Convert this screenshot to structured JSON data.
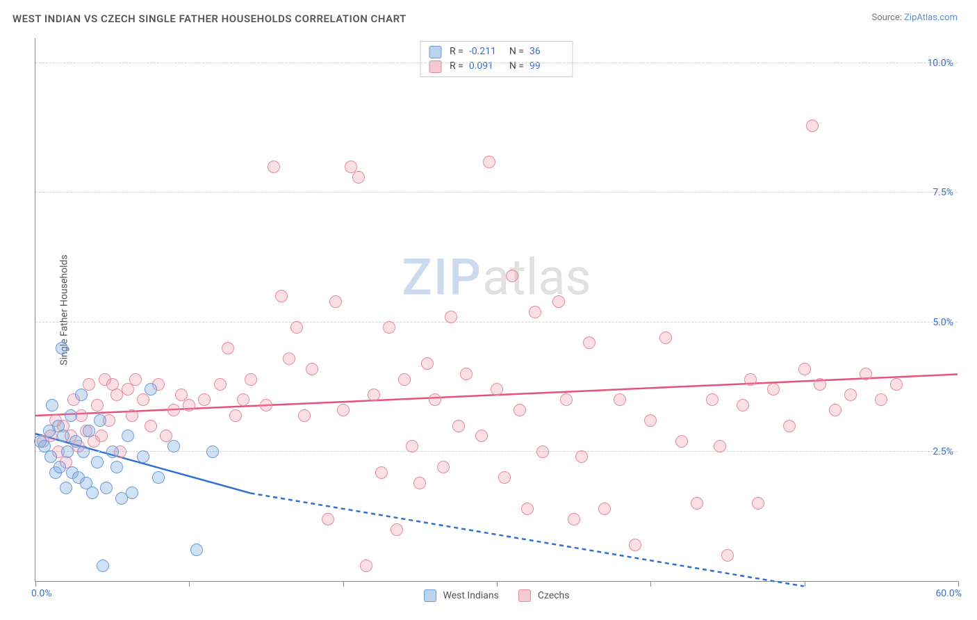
{
  "title": "WEST INDIAN VS CZECH SINGLE FATHER HOUSEHOLDS CORRELATION CHART",
  "source_prefix": "Source: ",
  "source_name": "ZipAtlas.com",
  "y_axis_title": "Single Father Households",
  "watermark": {
    "part1": "ZIP",
    "part2": "atlas"
  },
  "chart": {
    "type": "scatter",
    "xlim": [
      0,
      60
    ],
    "ylim": [
      0,
      10.5
    ],
    "x_ticks": [
      0,
      10,
      20,
      30,
      40,
      50,
      60
    ],
    "x_tick_labels": {
      "first": "0.0%",
      "last": "60.0%"
    },
    "y_ticks": [
      2.5,
      5.0,
      7.5,
      10.0
    ],
    "y_tick_labels": [
      "2.5%",
      "5.0%",
      "7.5%",
      "10.0%"
    ],
    "grid_color": "#d0d0d0",
    "background_color": "#ffffff",
    "axis_color": "#888888",
    "marker_radius": 9,
    "tick_label_color": "#3b6fc4"
  },
  "series": [
    {
      "name": "West Indians",
      "color_fill": "rgba(122,168,224,0.35)",
      "color_stroke": "#6a9bd8",
      "swatch_fill": "#bcd3ee",
      "swatch_border": "#6a9bd8",
      "line_color": "#2e6fd0",
      "R": "-0.211",
      "N": "36",
      "trend": {
        "x1": 0,
        "y1": 2.85,
        "x2": 14,
        "y2": 1.7,
        "x2_ext": 50,
        "y2_ext": -0.1
      },
      "points": [
        [
          0.3,
          2.7
        ],
        [
          0.6,
          2.6
        ],
        [
          0.9,
          2.9
        ],
        [
          1.0,
          2.4
        ],
        [
          1.1,
          3.4
        ],
        [
          1.3,
          2.1
        ],
        [
          1.5,
          3.0
        ],
        [
          1.6,
          2.2
        ],
        [
          1.7,
          4.5
        ],
        [
          1.8,
          2.8
        ],
        [
          2.0,
          1.8
        ],
        [
          2.1,
          2.5
        ],
        [
          2.3,
          3.2
        ],
        [
          2.4,
          2.1
        ],
        [
          2.6,
          2.7
        ],
        [
          2.8,
          2.0
        ],
        [
          3.0,
          3.6
        ],
        [
          3.1,
          2.5
        ],
        [
          3.3,
          1.9
        ],
        [
          3.5,
          2.9
        ],
        [
          3.7,
          1.7
        ],
        [
          4.0,
          2.3
        ],
        [
          4.2,
          3.1
        ],
        [
          4.4,
          0.3
        ],
        [
          4.6,
          1.8
        ],
        [
          5.0,
          2.5
        ],
        [
          5.3,
          2.2
        ],
        [
          5.6,
          1.6
        ],
        [
          6.0,
          2.8
        ],
        [
          6.3,
          1.7
        ],
        [
          7.0,
          2.4
        ],
        [
          7.5,
          3.7
        ],
        [
          8.0,
          2.0
        ],
        [
          9.0,
          2.6
        ],
        [
          10.5,
          0.6
        ],
        [
          11.5,
          2.5
        ]
      ]
    },
    {
      "name": "Czechs",
      "color_fill": "rgba(238,150,170,0.3)",
      "color_stroke": "#e48aa0",
      "swatch_fill": "#f5c9d3",
      "swatch_border": "#e48aa0",
      "line_color": "#e6537a",
      "R": "0.091",
      "N": "99",
      "trend": {
        "x1": 0,
        "y1": 3.2,
        "x2": 60,
        "y2": 4.0
      },
      "points": [
        [
          0.5,
          2.7
        ],
        [
          1.0,
          2.8
        ],
        [
          1.3,
          3.1
        ],
        [
          1.5,
          2.5
        ],
        [
          1.8,
          3.0
        ],
        [
          2.0,
          2.3
        ],
        [
          2.3,
          2.8
        ],
        [
          2.5,
          3.5
        ],
        [
          2.8,
          2.6
        ],
        [
          3.0,
          3.2
        ],
        [
          3.3,
          2.9
        ],
        [
          3.5,
          3.8
        ],
        [
          3.8,
          2.7
        ],
        [
          4.0,
          3.4
        ],
        [
          4.3,
          2.8
        ],
        [
          4.5,
          3.9
        ],
        [
          4.8,
          3.1
        ],
        [
          5.0,
          3.8
        ],
        [
          5.3,
          3.6
        ],
        [
          5.5,
          2.5
        ],
        [
          6.0,
          3.7
        ],
        [
          6.3,
          3.2
        ],
        [
          6.5,
          3.9
        ],
        [
          7.0,
          3.5
        ],
        [
          7.5,
          3.0
        ],
        [
          8.0,
          3.8
        ],
        [
          8.5,
          2.8
        ],
        [
          9.0,
          3.3
        ],
        [
          9.5,
          3.6
        ],
        [
          10.0,
          3.4
        ],
        [
          11.0,
          3.5
        ],
        [
          12.0,
          3.8
        ],
        [
          12.5,
          4.5
        ],
        [
          13.0,
          3.2
        ],
        [
          13.5,
          3.5
        ],
        [
          14.0,
          3.9
        ],
        [
          15.0,
          3.4
        ],
        [
          15.5,
          8.0
        ],
        [
          16.0,
          5.5
        ],
        [
          16.5,
          4.3
        ],
        [
          17.0,
          4.9
        ],
        [
          17.5,
          3.2
        ],
        [
          18.0,
          4.1
        ],
        [
          19.0,
          1.2
        ],
        [
          19.5,
          5.4
        ],
        [
          20.0,
          3.3
        ],
        [
          20.5,
          8.0
        ],
        [
          21.0,
          7.8
        ],
        [
          21.5,
          0.3
        ],
        [
          22.0,
          3.6
        ],
        [
          22.5,
          2.1
        ],
        [
          23.0,
          4.9
        ],
        [
          23.5,
          1.0
        ],
        [
          24.0,
          3.9
        ],
        [
          24.5,
          2.6
        ],
        [
          25.0,
          1.9
        ],
        [
          25.5,
          4.2
        ],
        [
          26.0,
          3.5
        ],
        [
          26.5,
          2.2
        ],
        [
          27.0,
          5.1
        ],
        [
          27.5,
          3.0
        ],
        [
          28.0,
          4.0
        ],
        [
          29.0,
          2.8
        ],
        [
          29.5,
          8.1
        ],
        [
          30.0,
          3.7
        ],
        [
          30.5,
          2.0
        ],
        [
          31.0,
          5.9
        ],
        [
          31.5,
          3.3
        ],
        [
          32.0,
          1.4
        ],
        [
          32.5,
          5.2
        ],
        [
          33.0,
          2.5
        ],
        [
          34.0,
          5.4
        ],
        [
          34.5,
          3.5
        ],
        [
          35.0,
          1.2
        ],
        [
          35.5,
          2.4
        ],
        [
          36.0,
          4.6
        ],
        [
          37.0,
          1.4
        ],
        [
          38.0,
          3.5
        ],
        [
          39.0,
          0.7
        ],
        [
          40.0,
          3.1
        ],
        [
          41.0,
          4.7
        ],
        [
          42.0,
          2.7
        ],
        [
          43.0,
          1.5
        ],
        [
          44.0,
          3.5
        ],
        [
          44.5,
          2.6
        ],
        [
          45.0,
          0.5
        ],
        [
          46.0,
          3.4
        ],
        [
          46.5,
          3.9
        ],
        [
          47.0,
          1.5
        ],
        [
          48.0,
          3.7
        ],
        [
          49.0,
          3.0
        ],
        [
          50.0,
          4.1
        ],
        [
          50.5,
          8.8
        ],
        [
          51.0,
          3.8
        ],
        [
          52.0,
          3.3
        ],
        [
          53.0,
          3.6
        ],
        [
          54.0,
          4.0
        ],
        [
          55.0,
          3.5
        ],
        [
          56.0,
          3.8
        ]
      ]
    }
  ]
}
